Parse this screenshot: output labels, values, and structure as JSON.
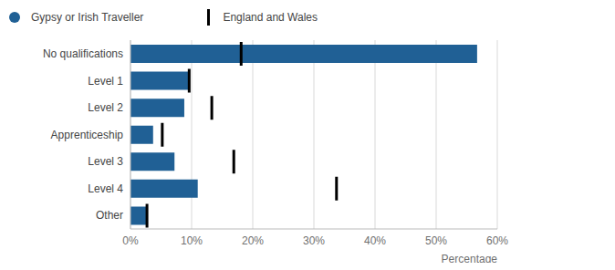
{
  "chart_data": {
    "type": "bar",
    "orientation": "horizontal",
    "categories": [
      "No qualifications",
      "Level 1",
      "Level 2",
      "Apprenticeship",
      "Level 3",
      "Level 4",
      "Other"
    ],
    "series": [
      {
        "name": "Gypsy or Irish Traveller",
        "color": "#206095",
        "type": "bar",
        "values": [
          56.7,
          9.6,
          8.8,
          3.7,
          7.2,
          11.0,
          2.7
        ]
      },
      {
        "name": "England and Wales",
        "color": "#000000",
        "type": "scatter",
        "marker": "line",
        "values": [
          18.1,
          9.6,
          13.3,
          5.2,
          16.9,
          33.7,
          2.7
        ]
      }
    ],
    "x_label": "Percentage",
    "xlim": [
      0,
      60
    ],
    "xticks": [
      {
        "value": 0,
        "label": "0%"
      },
      {
        "value": 10,
        "label": "10%"
      },
      {
        "value": 20,
        "label": "20%"
      },
      {
        "value": 30,
        "label": "30%"
      },
      {
        "value": 40,
        "label": "40%"
      },
      {
        "value": 50,
        "label": "50%"
      },
      {
        "value": 60,
        "label": "60%"
      }
    ],
    "grid": true,
    "legend": "top left"
  }
}
